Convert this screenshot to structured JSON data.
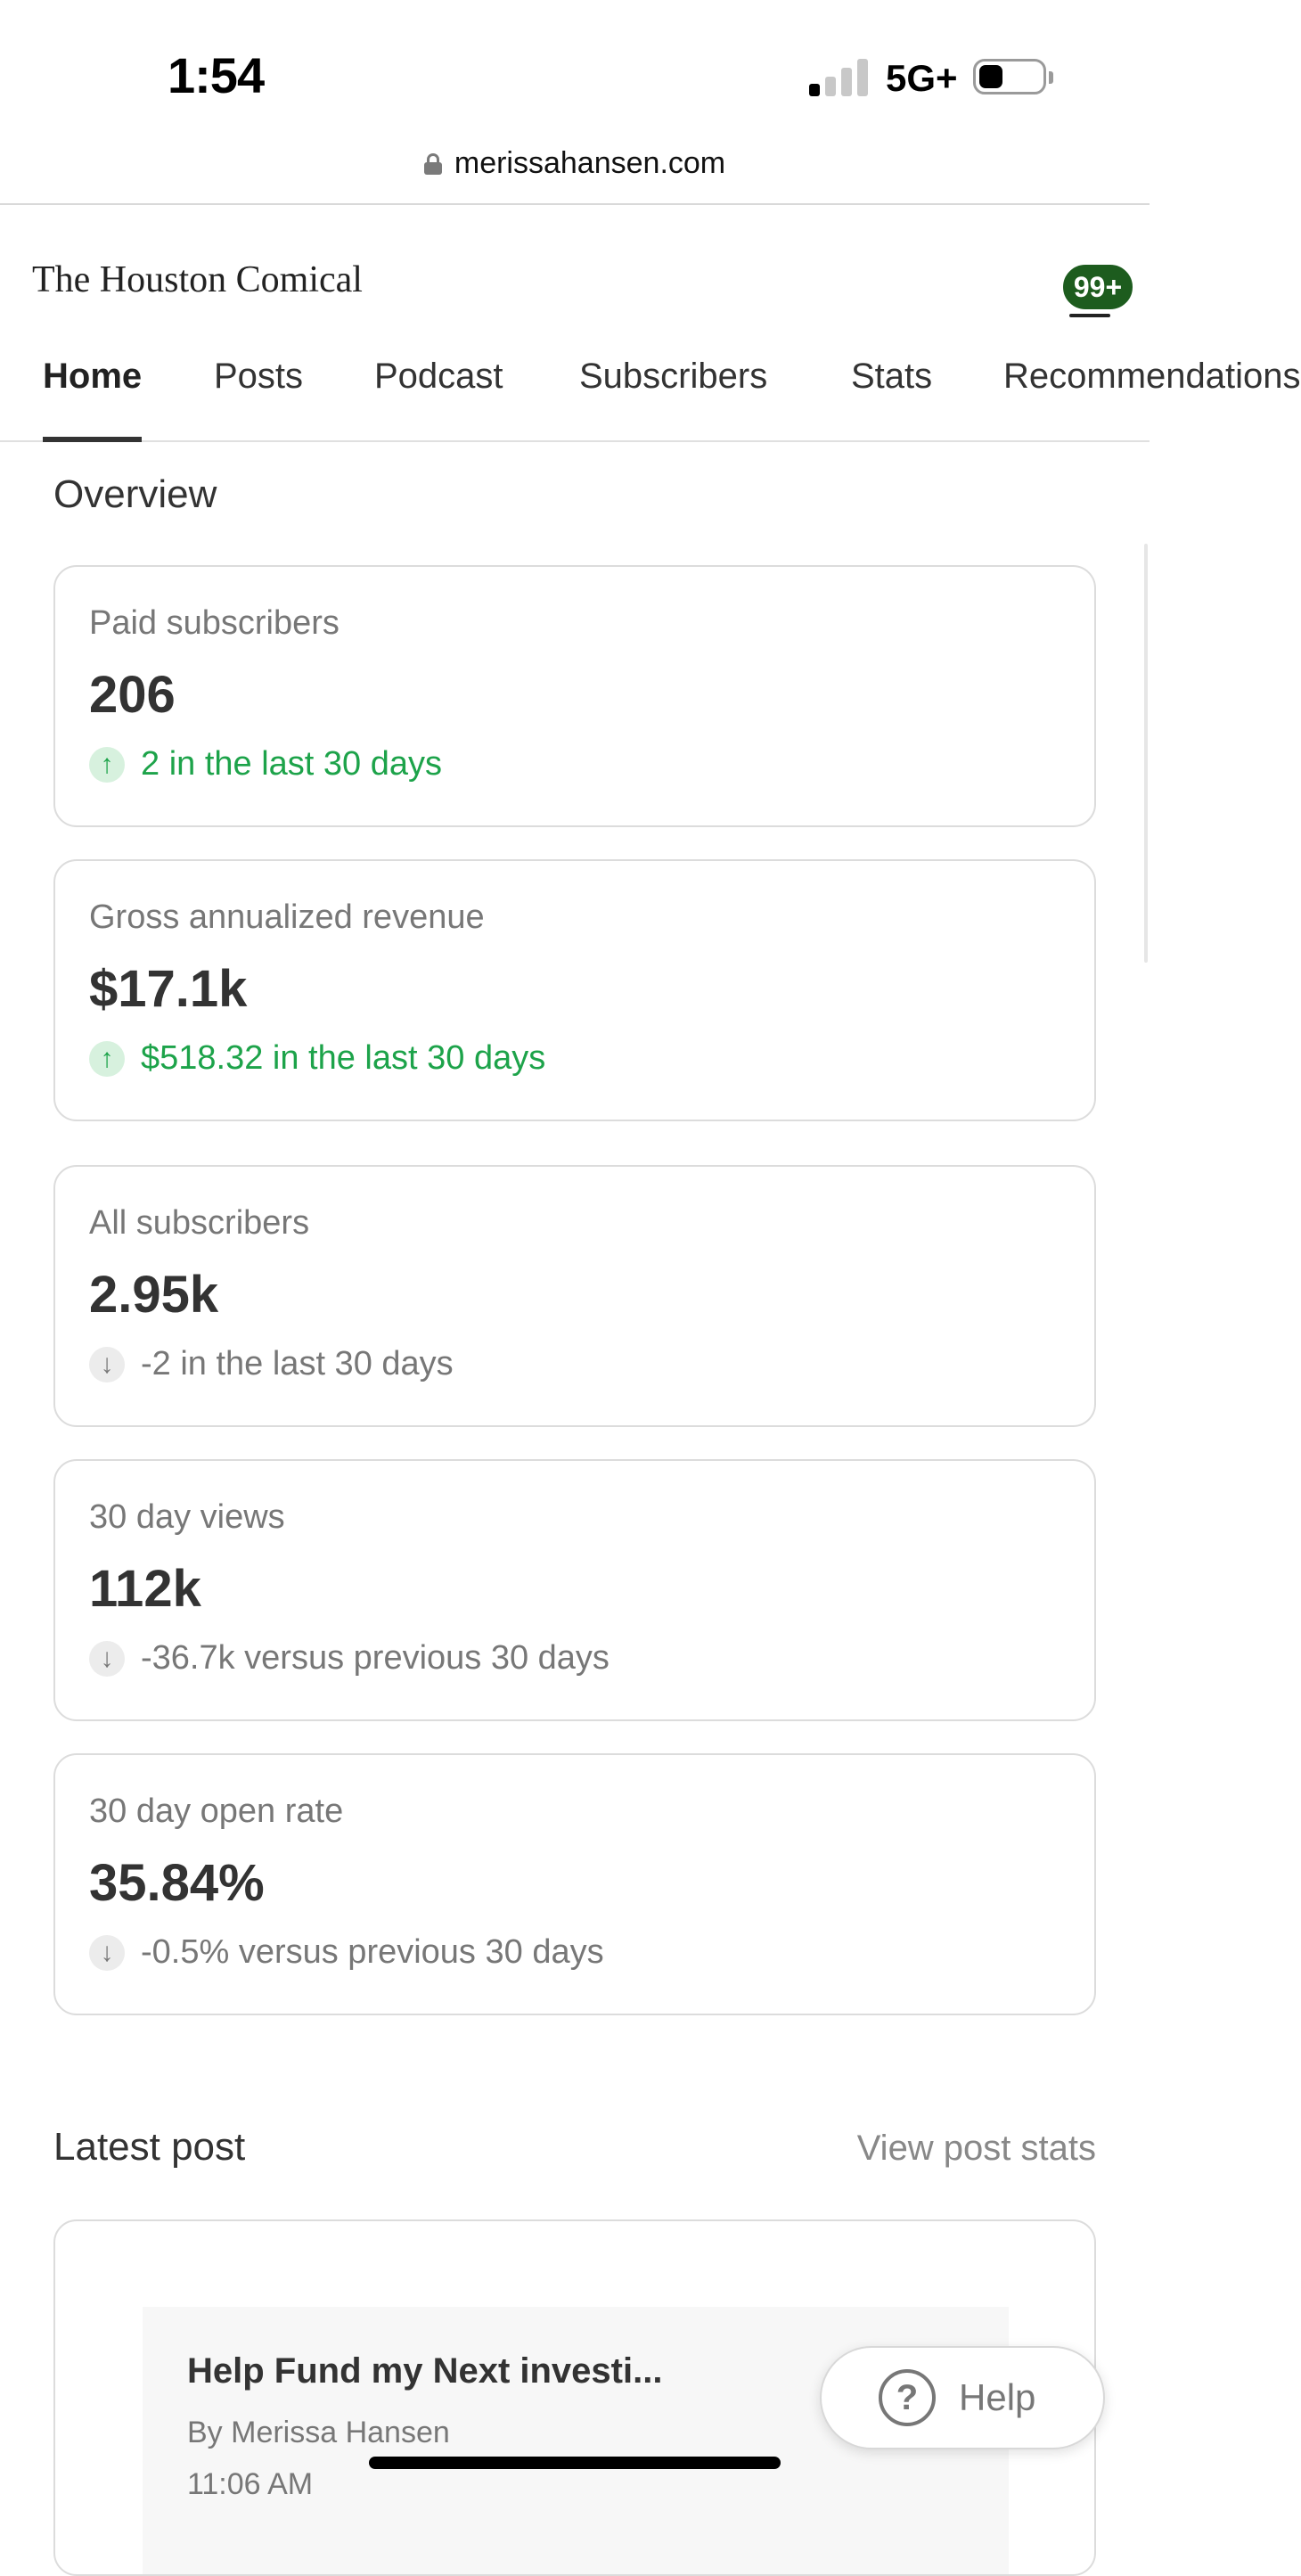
{
  "status_bar": {
    "time": "1:54",
    "network": "5G+",
    "signal_bars_active": 1,
    "signal_bars_total": 4,
    "battery_level": 0.3
  },
  "browser": {
    "url": "merissahansen.com",
    "lock_icon": "lock-icon"
  },
  "header": {
    "publication": "The Houston Comical",
    "notification_badge": "99+",
    "menu_icon": "hamburger-menu-icon",
    "badge_color": "#1d5c1e"
  },
  "tabs": [
    {
      "label": "Home",
      "active": true
    },
    {
      "label": "Posts",
      "active": false
    },
    {
      "label": "Podcast",
      "active": false
    },
    {
      "label": "Subscribers",
      "active": false
    },
    {
      "label": "Stats",
      "active": false
    },
    {
      "label": "Recommendations",
      "active": false
    }
  ],
  "overview": {
    "title": "Overview",
    "cards": [
      {
        "label": "Paid subscribers",
        "value": "206",
        "change": "2 in the last 30 days",
        "direction": "up",
        "icon": "arrow-up-icon"
      },
      {
        "label": "Gross annualized revenue",
        "value": "$17.1k",
        "change": "$518.32 in the last 30 days",
        "direction": "up",
        "icon": "arrow-up-icon"
      },
      {
        "label": "All subscribers",
        "value": "2.95k",
        "change": "-2 in the last 30 days",
        "direction": "down",
        "icon": "arrow-down-icon"
      },
      {
        "label": "30 day views",
        "value": "112k",
        "change": "-36.7k versus previous 30 days",
        "direction": "down",
        "icon": "arrow-down-icon"
      },
      {
        "label": "30 day open rate",
        "value": "35.84%",
        "change": "-0.5% versus previous 30 days",
        "direction": "down",
        "icon": "arrow-down-icon"
      }
    ],
    "colors": {
      "up": "#1da34a",
      "down": "#777777"
    }
  },
  "latest_post": {
    "title": "Latest post",
    "view_stats": "View post stats",
    "post_title": "Help Fund my Next investi...",
    "author": "By Merissa Hansen",
    "time": "11:06 AM"
  },
  "help": {
    "label": "Help",
    "icon": "question-circle-icon"
  }
}
